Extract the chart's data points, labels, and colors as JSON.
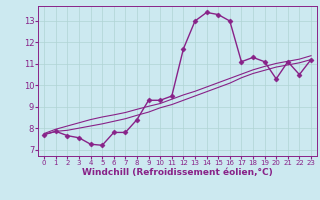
{
  "background_color": "#cce9f0",
  "grid_color": "#b0d4d4",
  "line_color": "#882288",
  "marker": "D",
  "markersize": 2.5,
  "linewidth": 1.0,
  "xlim": [
    -0.5,
    23.5
  ],
  "ylim": [
    6.7,
    13.7
  ],
  "xticks": [
    0,
    1,
    2,
    3,
    4,
    5,
    6,
    7,
    8,
    9,
    10,
    11,
    12,
    13,
    14,
    15,
    16,
    17,
    18,
    19,
    20,
    21,
    22,
    23
  ],
  "yticks": [
    7,
    8,
    9,
    10,
    11,
    12,
    13
  ],
  "xlabel": "Windchill (Refroidissement éolien,°C)",
  "xlabel_fontsize": 6.5,
  "tick_fontsize": 6,
  "line1_x": [
    0,
    1,
    2,
    3,
    4,
    5,
    6,
    7,
    8,
    9,
    10,
    11,
    12,
    13,
    14,
    15,
    16,
    17,
    18,
    19,
    20,
    21,
    22,
    23
  ],
  "line1_y": [
    7.7,
    7.85,
    7.65,
    7.55,
    7.25,
    7.2,
    7.8,
    7.8,
    8.4,
    9.3,
    9.3,
    9.5,
    11.7,
    13.0,
    13.4,
    13.3,
    13.0,
    11.1,
    11.3,
    11.1,
    10.3,
    11.1,
    10.5,
    11.2
  ],
  "line2_x": [
    0,
    1,
    2,
    3,
    4,
    5,
    6,
    7,
    8,
    9,
    10,
    11,
    12,
    13,
    14,
    15,
    16,
    17,
    18,
    19,
    20,
    21,
    22,
    23
  ],
  "line2_y": [
    7.7,
    7.85,
    7.9,
    8.0,
    8.1,
    8.2,
    8.32,
    8.44,
    8.6,
    8.75,
    8.95,
    9.1,
    9.3,
    9.5,
    9.7,
    9.9,
    10.1,
    10.35,
    10.55,
    10.7,
    10.85,
    10.95,
    11.05,
    11.2
  ],
  "line3_x": [
    0,
    1,
    2,
    3,
    4,
    5,
    6,
    7,
    8,
    9,
    10,
    11,
    12,
    13,
    14,
    15,
    16,
    17,
    18,
    19,
    20,
    21,
    22,
    23
  ],
  "line3_y": [
    7.75,
    7.95,
    8.1,
    8.25,
    8.4,
    8.52,
    8.62,
    8.73,
    8.88,
    9.02,
    9.15,
    9.35,
    9.55,
    9.72,
    9.92,
    10.12,
    10.32,
    10.52,
    10.72,
    10.88,
    11.02,
    11.12,
    11.22,
    11.38
  ]
}
